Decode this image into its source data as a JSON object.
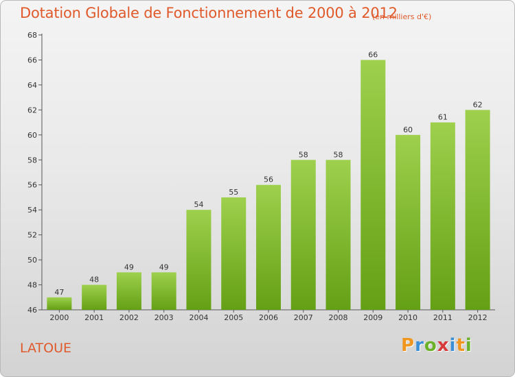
{
  "chart_data": {
    "type": "bar",
    "title": "Dotation Globale de Fonctionnement de 2000 à 2012",
    "unit_label": "(en milliers d'€)",
    "categories": [
      "2000",
      "2001",
      "2002",
      "2003",
      "2004",
      "2005",
      "2006",
      "2007",
      "2008",
      "2009",
      "2010",
      "2011",
      "2012"
    ],
    "values": [
      47,
      48,
      49,
      49,
      54,
      55,
      56,
      58,
      58,
      66,
      60,
      61,
      62
    ],
    "ylim": [
      46,
      68
    ],
    "yticks": [
      46,
      48,
      50,
      52,
      54,
      56,
      58,
      60,
      62,
      64,
      66,
      68
    ],
    "grid": false,
    "bar_color_top": "#9ed04d",
    "bar_color_bottom": "#64a015"
  },
  "commune_name": "LATOUE",
  "logo": {
    "letters": [
      "P",
      "r",
      "o",
      "x",
      "i",
      "t",
      "i"
    ],
    "colors": [
      "#f0961e",
      "#3a8fd6",
      "#6bb12a",
      "#d63a3a",
      "#3a8fd6",
      "#f0961e",
      "#6bb12a"
    ]
  },
  "colors": {
    "title": "#e0592a",
    "axis": "#555555"
  }
}
